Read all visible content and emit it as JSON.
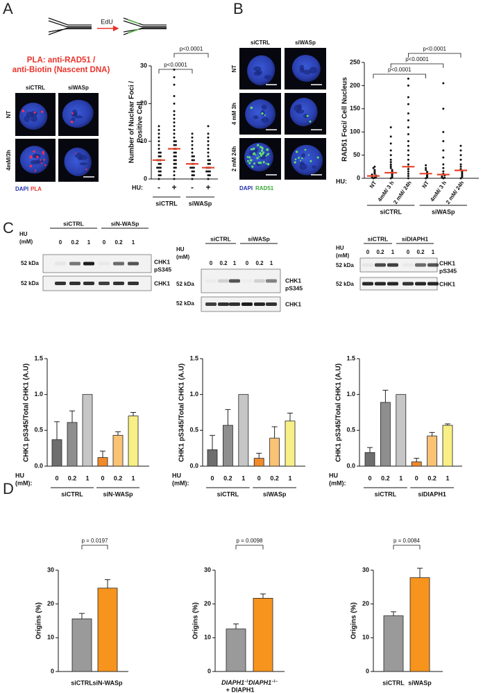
{
  "panels": [
    "A",
    "B",
    "C",
    "D"
  ],
  "panel_a": {
    "schematic_label": "EdU",
    "title_lines": [
      "PLA: anti-RAD51 /",
      "anti-Biotin (Nascent DNA)"
    ],
    "columns": [
      "siCTRL",
      "siWASp"
    ],
    "rows": [
      "NT",
      "4mM/3h"
    ],
    "stain_legend": [
      "DAPI",
      "PLA"
    ]
  },
  "panel_b": {
    "columns": [
      "siCTRL",
      "siWASp"
    ],
    "rows": [
      "NT",
      "4 mM 3h",
      "2 mM 24h"
    ],
    "stain_legend": [
      "DAPI",
      "RAD51"
    ]
  },
  "blots": [
    {
      "groups": [
        "siCTRL",
        "siN-WASp"
      ],
      "hu_label": [
        "HU",
        "(mM)"
      ],
      "doses": [
        "0",
        "0.2",
        "1",
        "0",
        "0.2",
        "1"
      ],
      "marker_labels": [
        "52 kDa",
        "52 kDa"
      ],
      "band_labels": [
        "CHK1",
        "pS345",
        "CHK1"
      ]
    },
    {
      "groups": [
        "siCTRL",
        "siWASp"
      ],
      "hu_label": [
        "HU",
        "(mM)"
      ],
      "doses": [
        "0",
        "0.2",
        "1",
        "0",
        "0.2",
        "1"
      ],
      "marker_labels": [
        "52 kDa",
        "52 kDa"
      ],
      "band_labels": [
        "CHK1",
        "pS345",
        "CHK1"
      ]
    },
    {
      "groups": [
        "siCTRL",
        "siDIAPH1"
      ],
      "hu_label": [
        "HU",
        "(mM)"
      ],
      "doses": [
        "0",
        "0.2",
        "1",
        "0",
        "0.2",
        "1"
      ],
      "marker_labels": [
        "52 kDa",
        "52 kDa"
      ],
      "band_labels": [
        "CHK1",
        "pS345",
        "CHK1"
      ]
    }
  ],
  "chart_data": [
    {
      "type": "strip",
      "ylabel": [
        "Number of Nuclear Foci /",
        "Positive Cell"
      ],
      "ylim": [
        0,
        30
      ],
      "yticks": [
        0,
        10,
        20,
        30
      ],
      "x_label": "HU:",
      "categories": [
        "-",
        "+",
        "-",
        "+"
      ],
      "groups": [
        "siCTRL",
        "siWASp"
      ],
      "values": [
        [
          0,
          1,
          1,
          2,
          2,
          3,
          3,
          3,
          4,
          4,
          5,
          5,
          5,
          6,
          6,
          7,
          7,
          8,
          9,
          10,
          11,
          12,
          13,
          14
        ],
        [
          0,
          1,
          2,
          3,
          3,
          4,
          4,
          5,
          5,
          6,
          6,
          7,
          7,
          8,
          8,
          9,
          9,
          10,
          10,
          11,
          12,
          13,
          14,
          15,
          16,
          17,
          18,
          20,
          22,
          25,
          27,
          29
        ],
        [
          0,
          1,
          1,
          2,
          2,
          3,
          3,
          3,
          4,
          4,
          5,
          5,
          6,
          6,
          7,
          8,
          9,
          10,
          11,
          12
        ],
        [
          0,
          1,
          1,
          2,
          2,
          2,
          3,
          3,
          3,
          4,
          4,
          5,
          5,
          6,
          7,
          8,
          9,
          10,
          11,
          12,
          14
        ]
      ],
      "means": [
        5,
        8,
        4,
        3
      ],
      "color": "#111111",
      "mean_color": "#e8432a",
      "comparisons": [
        "p<0.0001",
        "p<0.0001"
      ]
    },
    {
      "type": "strip",
      "ylabel": "RAD51 Foci/ Cell Nucleus",
      "ylim": [
        0,
        250
      ],
      "yticks": [
        0,
        50,
        100,
        150,
        200,
        250
      ],
      "x_label": "HU:",
      "categories": [
        "NT",
        "4mM/ 3 h",
        "2 mM/ 24h",
        "NT",
        "4mM/ 3 h",
        "2 mM/ 24h"
      ],
      "groups": [
        "siCTRL",
        "siWASp"
      ],
      "values": [
        [
          0,
          1,
          2,
          3,
          4,
          5,
          6,
          8,
          10,
          12,
          15,
          18,
          22,
          25
        ],
        [
          0,
          2,
          4,
          6,
          8,
          10,
          12,
          15,
          18,
          22,
          26,
          30,
          35,
          40,
          50,
          60,
          75,
          90,
          110
        ],
        [
          0,
          5,
          10,
          15,
          20,
          25,
          30,
          40,
          50,
          60,
          70,
          80,
          95,
          110,
          125,
          140,
          160,
          175,
          200,
          215
        ],
        [
          0,
          2,
          4,
          6,
          8,
          10,
          12,
          14,
          18,
          22,
          28
        ],
        [
          0,
          1,
          2,
          4,
          6,
          10,
          15,
          22,
          30,
          45,
          60,
          80,
          100,
          150,
          205
        ],
        [
          0,
          3,
          6,
          9,
          12,
          15,
          20,
          25,
          30,
          40,
          50,
          60,
          70
        ]
      ],
      "means": [
        5,
        12,
        25,
        10,
        8,
        17
      ],
      "color": "#111111",
      "mean_color": "#e8432a",
      "comparisons": [
        "p<0.0001",
        "p<0.0001",
        "p<0.0001"
      ]
    },
    {
      "type": "bar",
      "ylabel": "CHK1 pS345/Total CHK1 (A.U)",
      "ylim": [
        0,
        1.5
      ],
      "yticks": [
        {
          "value": 0,
          "label": "0.0"
        },
        0.5,
        {
          "value": 1,
          "label": "1.0"
        },
        1.5
      ],
      "x_label": [
        "HU",
        "(mM):"
      ],
      "categories": [
        "0",
        "0.2",
        "1",
        "0",
        "0.2",
        "1"
      ],
      "groups": [
        "siCTRL",
        "siN-WASp"
      ],
      "values": [
        0.37,
        0.61,
        1.0,
        0.12,
        0.43,
        0.7
      ],
      "errors": [
        0.25,
        0.16,
        null,
        0.09,
        0.05,
        0.05
      ],
      "colors": [
        "#6e6e6e",
        "#8e8e8e",
        "#c6c6c6",
        "#f08a2a",
        "#f9c274",
        "#f8ef86"
      ]
    },
    {
      "type": "bar",
      "ylabel": "CHK1 pS345/Total CHK1 (A.U)",
      "ylim": [
        0,
        1.5
      ],
      "yticks": [
        {
          "value": 0,
          "label": "0.0"
        },
        0.5,
        {
          "value": 1,
          "label": "1.0"
        },
        1.5
      ],
      "x_label": [
        "HU",
        "(mM):"
      ],
      "categories": [
        "0",
        "0.2",
        "1",
        "0",
        "0.2",
        "1"
      ],
      "groups": [
        "siCTRL",
        "siWASp"
      ],
      "values": [
        0.23,
        0.57,
        1.0,
        0.11,
        0.39,
        0.63
      ],
      "errors": [
        0.2,
        0.22,
        null,
        0.07,
        0.16,
        0.11
      ],
      "colors": [
        "#6e6e6e",
        "#8e8e8e",
        "#c6c6c6",
        "#f08a2a",
        "#f9c274",
        "#f8ef86"
      ]
    },
    {
      "type": "bar",
      "ylabel": "CHK1 pS345/Total CHK1 (A.U)",
      "ylim": [
        0,
        1.5
      ],
      "yticks": [
        {
          "value": 0,
          "label": "0.0"
        },
        0.5,
        {
          "value": 1,
          "label": "1.0"
        },
        1.5
      ],
      "x_label": [
        "HU",
        "(mM):"
      ],
      "categories": [
        "0",
        "0.2",
        "1",
        "0",
        "0.2",
        "1"
      ],
      "groups": [
        "siCTRL",
        "siDIAPH1"
      ],
      "values": [
        0.19,
        0.89,
        1.0,
        0.06,
        0.42,
        0.57
      ],
      "errors": [
        0.07,
        0.17,
        null,
        0.05,
        0.05,
        0.02
      ],
      "colors": [
        "#6e6e6e",
        "#8e8e8e",
        "#c6c6c6",
        "#f08a2a",
        "#f9c274",
        "#f8ef86"
      ]
    },
    {
      "type": "bar",
      "ylabel": "Origins (%)",
      "ylim": [
        0,
        30
      ],
      "yticks": [
        0,
        10,
        20,
        30
      ],
      "categories": [
        "siCTRL",
        "siN-WASp"
      ],
      "values": [
        15.6,
        24.7
      ],
      "errors": [
        1.6,
        2.5
      ],
      "colors": [
        "#9a9a9a",
        "#f7941d"
      ],
      "comparisons": [
        "p = 0.0197"
      ]
    },
    {
      "type": "bar",
      "ylabel": "Origins (%)",
      "ylim": [
        0,
        30
      ],
      "yticks": [
        0,
        10,
        20,
        30
      ],
      "categories": [
        [
          "DIAPH1",
          "−/−",
          "+ DIAPH1"
        ],
        [
          "DIAPH1",
          "−/−"
        ]
      ],
      "values": [
        12.6,
        21.7
      ],
      "errors": [
        1.5,
        1.3
      ],
      "colors": [
        "#9a9a9a",
        "#f7941d"
      ],
      "comparisons": [
        "p = 0.0098"
      ]
    },
    {
      "type": "bar",
      "ylabel": "Origins (%)",
      "ylim": [
        0,
        30
      ],
      "yticks": [
        0,
        10,
        20,
        30
      ],
      "categories": [
        "siCTRL",
        "siWASp"
      ],
      "values": [
        16.5,
        27.8
      ],
      "errors": [
        1.2,
        2.8
      ],
      "colors": [
        "#9a9a9a",
        "#f7941d"
      ],
      "comparisons": [
        "p = 0.0084"
      ]
    }
  ]
}
